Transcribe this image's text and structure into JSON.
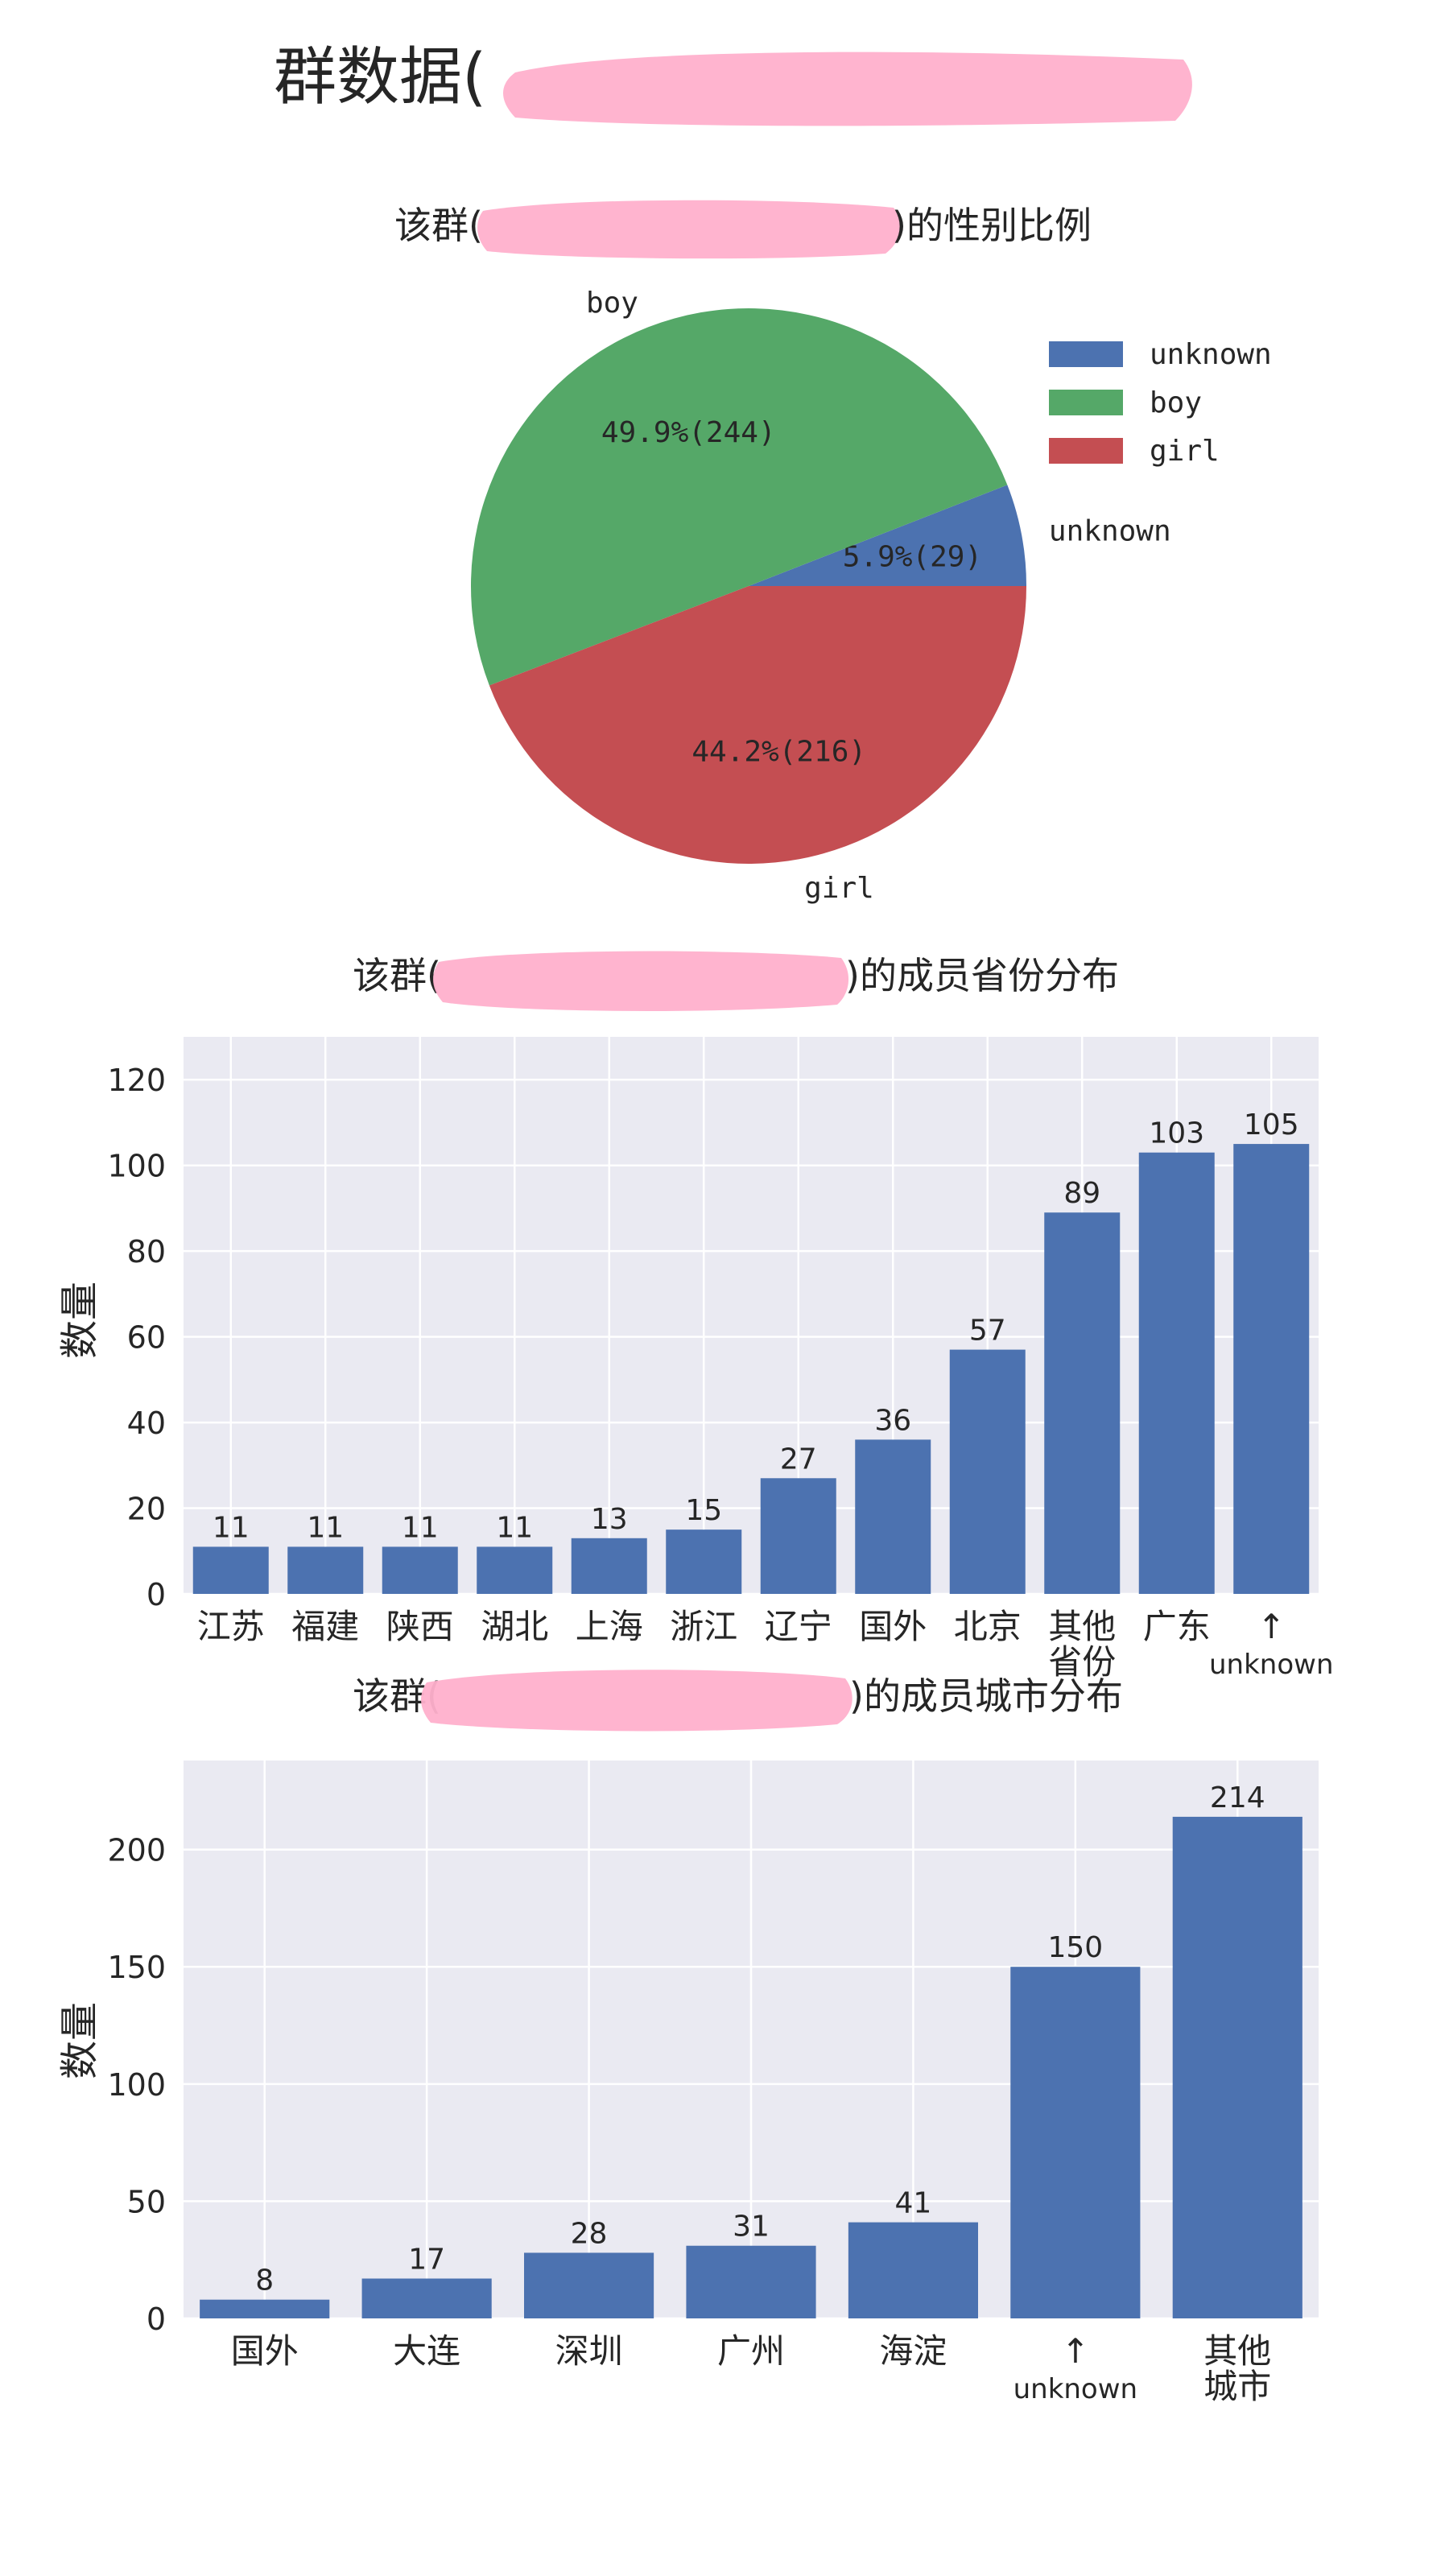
{
  "page_title": "群数据(",
  "chart_data": [
    {
      "type": "pie",
      "title_prefix": "该群(",
      "title_suffix": ")的性别比例",
      "slices": [
        {
          "name": "unknown",
          "value": 29,
          "percent_label": "5.9%(29)",
          "color": "#4c72b0"
        },
        {
          "name": "boy",
          "value": 244,
          "percent_label": "49.9%(244)",
          "color": "#55a868"
        },
        {
          "name": "girl",
          "value": 216,
          "percent_label": "44.2%(216)",
          "color": "#c44e52"
        }
      ],
      "legend": [
        "unknown",
        "boy",
        "girl"
      ],
      "legend_position": "top-right"
    },
    {
      "type": "bar",
      "title_prefix": "该群(",
      "title_suffix": ")的成员省份分布",
      "categories": [
        "江苏",
        "福建",
        "陕西",
        "湖北",
        "上海",
        "浙江",
        "辽宁",
        "国外",
        "北京",
        "其他\n省份",
        "广东",
        "↑\nunknown"
      ],
      "values": [
        11,
        11,
        11,
        11,
        13,
        15,
        27,
        36,
        57,
        89,
        103,
        105
      ],
      "ylabel": "数量",
      "ylim": [
        0,
        130
      ],
      "yticks": [
        0,
        20,
        40,
        60,
        80,
        100,
        120
      ],
      "grid": true,
      "bar_color": "#4c72b0"
    },
    {
      "type": "bar",
      "title_prefix": "该群(",
      "title_suffix": ")的成员城市分布",
      "categories": [
        "国外",
        "大连",
        "深圳",
        "广州",
        "海淀",
        "↑\nunknown",
        "其他\n城市"
      ],
      "values": [
        8,
        17,
        28,
        31,
        41,
        150,
        214
      ],
      "ylabel": "数量",
      "ylim": [
        0,
        238
      ],
      "yticks": [
        0,
        50,
        100,
        150,
        200
      ],
      "grid": true,
      "bar_color": "#4c72b0"
    }
  ]
}
